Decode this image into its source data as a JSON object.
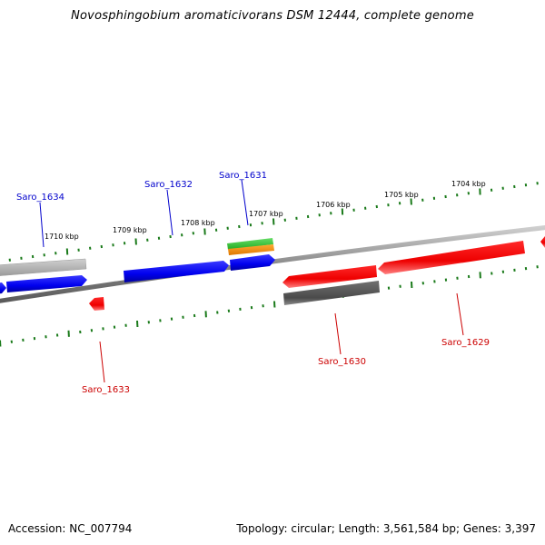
{
  "title": "Novosphingobium aromaticivorans DSM 12444, complete genome",
  "accession_text": "Accession: NC_007794",
  "topology_text": "Topology: circular; Length: 3,561,584 bp; Genes: 3,397",
  "kbp_labels": [
    "1710 kbp",
    "1709 kbp",
    "1708 kbp",
    "1707 kbp",
    "1706 kbp",
    "1705 kbp",
    "1704 kbp"
  ],
  "genes": [
    {
      "name": "Saro_1634",
      "color": "#0000ff"
    },
    {
      "name": "Saro_1632",
      "color": "#0000ff"
    },
    {
      "name": "Saro_1631",
      "color": "#0000ff"
    },
    {
      "name": "Saro_1633",
      "color": "#cc0000"
    },
    {
      "name": "Saro_1630",
      "color": "#cc0000"
    },
    {
      "name": "Saro_1629",
      "color": "#cc0000"
    }
  ],
  "colors": {
    "forward_strand": "#0000ff",
    "reverse_strand": "#ff0000",
    "forward_label": "#0000cc",
    "reverse_label": "#cc0000",
    "tick": "#1a7a1a",
    "backbone": "#888888",
    "pseudo_gene": "#b0b0b0",
    "dark_gene": "#555555",
    "green_feature": "#33bb33",
    "orange_feature": "#ee8800"
  }
}
